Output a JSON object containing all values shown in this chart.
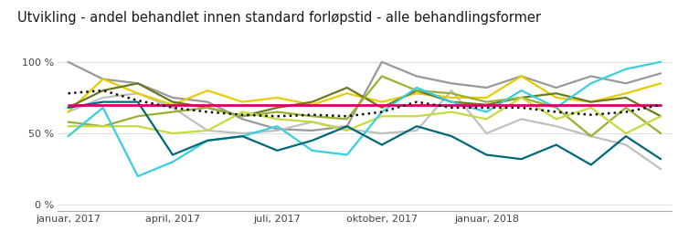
{
  "title": "Utvikling - andel behandlet innen standard forløpstid - alle behandlingsformer",
  "xtick_labels": [
    "januar, 2017",
    "april, 2017",
    "juli, 2017",
    "oktober, 2017",
    "januar, 2018"
  ],
  "xtick_positions": [
    0,
    3,
    6,
    9,
    12
  ],
  "n_points": 18,
  "background_color": "#ffffff",
  "title_bar_color": "#2ab0c8",
  "series": [
    {
      "name": "gray_dark",
      "color": "#999999",
      "lw": 1.6,
      "linestyle": "solid",
      "values": [
        1.0,
        0.88,
        0.85,
        0.75,
        0.72,
        0.6,
        0.53,
        0.52,
        0.55,
        1.0,
        0.9,
        0.85,
        0.82,
        0.9,
        0.82,
        0.9,
        0.85,
        0.92
      ]
    },
    {
      "name": "gray_light",
      "color": "#c0c0c0",
      "lw": 1.6,
      "linestyle": "solid",
      "values": [
        0.65,
        0.75,
        0.78,
        0.68,
        0.52,
        0.5,
        0.52,
        0.58,
        0.53,
        0.5,
        0.52,
        0.8,
        0.5,
        0.6,
        0.55,
        0.48,
        0.42,
        0.25
      ]
    },
    {
      "name": "yellow",
      "color": "#e8cc00",
      "lw": 1.6,
      "linestyle": "solid",
      "values": [
        0.65,
        0.88,
        0.78,
        0.7,
        0.8,
        0.72,
        0.75,
        0.7,
        0.78,
        0.72,
        0.78,
        0.75,
        0.75,
        0.9,
        0.75,
        0.72,
        0.78,
        0.85
      ]
    },
    {
      "name": "olive_dark",
      "color": "#6b7820",
      "lw": 1.6,
      "linestyle": "solid",
      "values": [
        0.68,
        0.8,
        0.85,
        0.72,
        0.68,
        0.62,
        0.68,
        0.72,
        0.82,
        0.68,
        0.8,
        0.72,
        0.7,
        0.75,
        0.78,
        0.72,
        0.75,
        0.62
      ]
    },
    {
      "name": "olive_medium",
      "color": "#9cb030",
      "lw": 1.6,
      "linestyle": "solid",
      "values": [
        0.58,
        0.55,
        0.62,
        0.65,
        0.68,
        0.62,
        0.65,
        0.62,
        0.6,
        0.9,
        0.8,
        0.78,
        0.72,
        0.75,
        0.68,
        0.48,
        0.68,
        0.5
      ]
    },
    {
      "name": "lime",
      "color": "#c8d840",
      "lw": 1.6,
      "linestyle": "solid",
      "values": [
        0.55,
        0.55,
        0.55,
        0.5,
        0.52,
        0.65,
        0.6,
        0.58,
        0.52,
        0.62,
        0.62,
        0.65,
        0.6,
        0.75,
        0.6,
        0.68,
        0.5,
        0.62
      ]
    },
    {
      "name": "cyan",
      "color": "#38d0e0",
      "lw": 1.6,
      "linestyle": "solid",
      "values": [
        0.48,
        0.68,
        0.2,
        0.3,
        0.45,
        0.48,
        0.55,
        0.38,
        0.35,
        0.65,
        0.82,
        0.72,
        0.65,
        0.8,
        0.68,
        0.85,
        0.95,
        1.0
      ]
    },
    {
      "name": "teal",
      "color": "#006878",
      "lw": 1.6,
      "linestyle": "solid",
      "values": [
        0.68,
        0.72,
        0.72,
        0.35,
        0.45,
        0.48,
        0.38,
        0.45,
        0.55,
        0.42,
        0.55,
        0.48,
        0.35,
        0.32,
        0.42,
        0.28,
        0.48,
        0.32
      ]
    },
    {
      "name": "magenta",
      "color": "#d8006a",
      "lw": 2.0,
      "linestyle": "solid",
      "values": [
        0.7,
        0.7,
        0.7,
        0.7,
        0.7,
        0.7,
        0.7,
        0.7,
        0.7,
        0.7,
        0.7,
        0.7,
        0.7,
        0.7,
        0.7,
        0.7,
        0.7,
        0.7
      ]
    },
    {
      "name": "dotted_avg",
      "color": "#111111",
      "lw": 1.8,
      "linestyle": "dotted",
      "values": [
        0.78,
        0.8,
        0.73,
        0.68,
        0.65,
        0.63,
        0.62,
        0.63,
        0.62,
        0.65,
        0.72,
        0.68,
        0.68,
        0.68,
        0.65,
        0.63,
        0.65,
        0.7
      ]
    }
  ]
}
